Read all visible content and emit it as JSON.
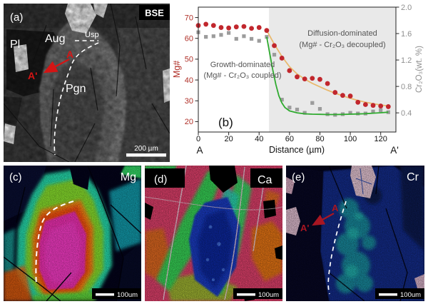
{
  "figure": {
    "panel_a": {
      "tag": "(a)",
      "technique": "BSE",
      "minerals": {
        "pl": "Pl",
        "aug": "Aug",
        "usp": "Usp",
        "pgn": "Pgn"
      },
      "traverse": {
        "start": "A",
        "end": "A'"
      },
      "scale_bar_text": "200 µm"
    },
    "panel_c": {
      "tag": "(c)",
      "element": "Mg",
      "scale_bar_text": "100um"
    },
    "panel_d": {
      "tag": "(d)",
      "element": "Ca",
      "scale_bar_text": "100um"
    },
    "panel_e": {
      "tag": "(e)",
      "element": "Cr",
      "traverse": {
        "start": "A",
        "end": "A'"
      },
      "scale_bar_text": "100um"
    }
  },
  "chart_data": {
    "type": "scatter",
    "panel_tag": "(b)",
    "xlabel": "Distance (µm)",
    "ylabel_left": "Mg#",
    "ylabel_right": "Cr₂O₃(wt. %)",
    "profile_start_label": "A",
    "profile_end_label": "A'",
    "xlim": [
      0,
      130
    ],
    "ylim_left": [
      15,
      75
    ],
    "ylim_right": [
      0.11,
      2.0
    ],
    "xticks": [
      0,
      20,
      40,
      60,
      80,
      100,
      120
    ],
    "yticks_left": [
      20,
      30,
      40,
      50,
      60,
      70
    ],
    "yticks_right": [
      0.4,
      0.8,
      1.2,
      1.6,
      2.0
    ],
    "grid": false,
    "legend": "none",
    "shaded_region": {
      "from_x": 46.5,
      "to_x": 130,
      "color": "#e9e9e9"
    },
    "annotations": [
      {
        "lines": [
          "Growth-dominated",
          "(Mg# - Cr₂O₃ coupled)"
        ],
        "x_um": 29,
        "mg_y": 46.5
      },
      {
        "lines": [
          "Diffusion-dominated",
          "(Mg# - Cr₂O₃ decoupled)"
        ],
        "x_um": 95,
        "mg_y": 61.5
      }
    ],
    "x_um": [
      0,
      5,
      10,
      15,
      20,
      25,
      30,
      35,
      40,
      45,
      50,
      55,
      60,
      65,
      70,
      75,
      80,
      85,
      90,
      95,
      100,
      105,
      110,
      115,
      120,
      125
    ],
    "series": [
      {
        "name": "Mg#",
        "axis": "left",
        "marker": "circle",
        "color": "#c1272d",
        "values": [
          66.2,
          66.8,
          66.2,
          65.2,
          65.0,
          65.5,
          65.7,
          64.8,
          65.2,
          63.8,
          56.5,
          50.5,
          44.5,
          41.5,
          40.5,
          40.8,
          40.3,
          38.3,
          34.0,
          32.6,
          32.3,
          29.3,
          28.2,
          27.8,
          27.5,
          27.2
        ]
      },
      {
        "name": "Cr₂O₃ (wt. %)",
        "axis": "right",
        "marker": "square",
        "color": "#9c9c9c",
        "values": [
          1.62,
          1.55,
          1.56,
          1.58,
          1.61,
          1.52,
          1.56,
          1.52,
          1.49,
          1.55,
          1.28,
          0.6,
          0.48,
          0.45,
          0.4,
          0.55,
          0.46,
          0.38,
          0.37,
          0.38,
          0.4,
          0.39,
          0.39,
          0.42,
          0.44,
          0.41
        ]
      }
    ],
    "fit_curves": [
      {
        "name": "Mg# diffusion fit",
        "axis": "left",
        "color": "#e9b96e",
        "points": [
          [
            45,
            63.8
          ],
          [
            50,
            57.2
          ],
          [
            55,
            51.3
          ],
          [
            60,
            46.4
          ],
          [
            65,
            42.9
          ],
          [
            70,
            40.4
          ],
          [
            75,
            38.4
          ],
          [
            80,
            36.7
          ],
          [
            85,
            35.1
          ],
          [
            90,
            33.7
          ],
          [
            95,
            32.4
          ],
          [
            100,
            31.2
          ],
          [
            105,
            30.2
          ],
          [
            110,
            29.3
          ],
          [
            115,
            28.6
          ],
          [
            120,
            28.0
          ],
          [
            125,
            27.5
          ]
        ]
      },
      {
        "name": "Cr₂O₃ fit",
        "axis": "right",
        "color": "#2eaa2e",
        "points": [
          [
            45,
            1.55
          ],
          [
            47,
            1.3
          ],
          [
            49,
            1.05
          ],
          [
            51,
            0.83
          ],
          [
            53,
            0.66
          ],
          [
            55,
            0.55
          ],
          [
            57,
            0.48
          ],
          [
            60,
            0.43
          ],
          [
            65,
            0.4
          ],
          [
            70,
            0.385
          ],
          [
            75,
            0.38
          ],
          [
            80,
            0.378
          ],
          [
            85,
            0.375
          ],
          [
            90,
            0.375
          ],
          [
            95,
            0.377
          ],
          [
            100,
            0.38
          ],
          [
            105,
            0.383
          ],
          [
            110,
            0.388
          ],
          [
            115,
            0.395
          ],
          [
            120,
            0.402
          ],
          [
            125,
            0.41
          ]
        ]
      }
    ],
    "colors": {
      "mg_points": "#c1272d",
      "cr_points": "#9c9c9c",
      "mg_fit": "#e9b96e",
      "cr_fit": "#2eaa2e",
      "left_axis_text": "#b03028",
      "right_axis_text": "#8f8f8f",
      "shade": "#e9e9e9"
    }
  }
}
